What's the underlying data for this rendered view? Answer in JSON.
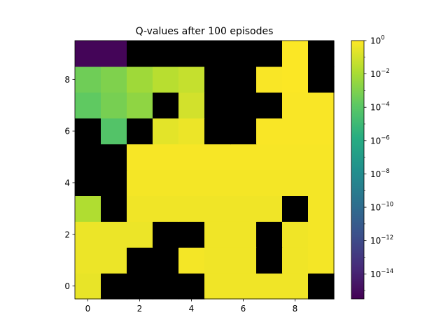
{
  "chart_data": {
    "type": "heatmap",
    "title": "Q-values after 100 episodes",
    "xlabel": "",
    "ylabel": "",
    "origin": "lower",
    "xlim": [
      -0.5,
      9.5
    ],
    "ylim": [
      -0.5,
      9.5
    ],
    "x_ticks": [
      0,
      2,
      4,
      6,
      8
    ],
    "y_ticks": [
      0,
      2,
      4,
      6,
      8
    ],
    "x_tick_labels": [
      "0",
      "2",
      "4",
      "6",
      "8"
    ],
    "y_tick_labels": [
      "0",
      "2",
      "4",
      "6",
      "8"
    ],
    "colormap": "viridis",
    "color_scale": "log",
    "missing_color": "#000000",
    "colorbar": {
      "log_min": -15.5,
      "log_max": 0,
      "tick_exponents": [
        0,
        -2,
        -4,
        -6,
        -8,
        -10,
        -12,
        -14
      ],
      "tick_labels": [
        "10",
        "10",
        "10",
        "10",
        "10",
        "10",
        "10",
        "10"
      ],
      "tick_superscripts": [
        "0",
        "−2",
        "−4",
        "−6",
        "−8",
        "−10",
        "−12",
        "−14"
      ]
    },
    "z_log10": [
      [
        -0.5,
        null,
        null,
        null,
        null,
        -0.3,
        -0.3,
        -0.3,
        -0.3,
        null
      ],
      [
        -0.4,
        -0.4,
        null,
        null,
        -0.2,
        -0.3,
        -0.3,
        null,
        -0.3,
        -0.2
      ],
      [
        -0.4,
        -0.4,
        -0.4,
        null,
        null,
        -0.3,
        -0.3,
        null,
        -0.3,
        -0.2
      ],
      [
        -1.8,
        null,
        -0.3,
        -0.3,
        -0.3,
        -0.3,
        -0.3,
        -0.3,
        null,
        -0.2
      ],
      [
        null,
        null,
        -0.2,
        -0.2,
        -0.2,
        -0.2,
        -0.2,
        -0.2,
        -0.2,
        -0.2
      ],
      [
        null,
        null,
        -0.15,
        -0.15,
        -0.15,
        -0.15,
        -0.15,
        -0.15,
        -0.15,
        -0.15
      ],
      [
        null,
        -4.2,
        null,
        -0.6,
        -0.4,
        null,
        null,
        -0.1,
        -0.1,
        -0.1
      ],
      [
        -3.8,
        -3.2,
        -2.6,
        null,
        -1.0,
        null,
        null,
        null,
        -0.1,
        -0.1
      ],
      [
        -3.4,
        -3.0,
        -2.2,
        -1.6,
        -1.3,
        null,
        null,
        -0.1,
        -0.05,
        null
      ],
      [
        -15.3,
        -15.3,
        null,
        null,
        null,
        null,
        null,
        null,
        -0.05,
        null
      ]
    ]
  }
}
